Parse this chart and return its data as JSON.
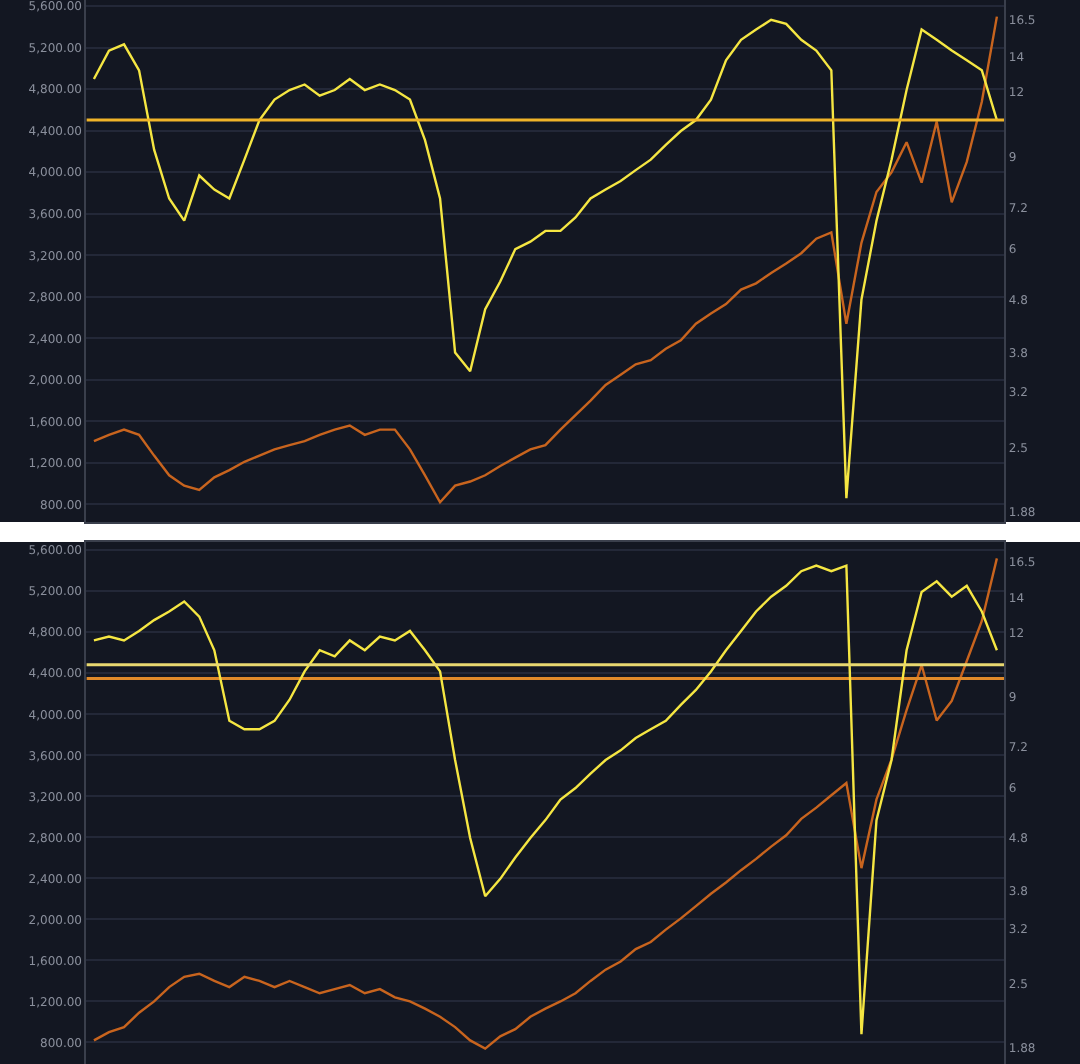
{
  "chart_data": [
    {
      "type": "line",
      "categories": [
        null,
        null,
        null,
        null,
        null,
        null,
        null,
        null,
        null,
        null,
        null,
        null,
        null,
        null,
        null,
        null,
        null,
        null,
        null,
        null,
        null,
        null,
        null,
        null,
        null,
        null,
        null,
        null,
        null,
        null,
        null,
        null,
        null,
        null,
        null,
        null,
        null,
        null,
        null,
        null,
        null,
        null,
        null,
        null,
        null,
        null,
        null,
        null,
        null,
        null,
        null,
        null,
        null,
        null,
        null,
        null,
        null,
        null,
        null,
        null,
        null
      ],
      "series": [
        {
          "color": "#c8641e",
          "values": [
            1410,
            1470,
            1520,
            1470,
            1270,
            1080,
            980,
            940,
            1060,
            1130,
            1210,
            1270,
            1330,
            1370,
            1410,
            1470,
            1520,
            1560,
            1470,
            1520,
            1520,
            1330,
            1080,
            820,
            980,
            1020,
            1080,
            1170,
            1250,
            1330,
            1370,
            1520,
            1660,
            1800,
            1950,
            2050,
            2150,
            2190,
            2300,
            2380,
            2540,
            2640,
            2730,
            2870,
            2930,
            3030,
            3120,
            3220,
            3360,
            3420,
            2540,
            3320,
            3810,
            4000,
            4290,
            3900,
            4490,
            3710,
            4100,
            4680,
            5500
          ]
        },
        {
          "color": "#f5e642",
          "axis": "y2",
          "values": [
            12.7,
            14.4,
            14.8,
            13.2,
            9.3,
            7.5,
            6.8,
            8.3,
            7.8,
            7.5,
            8.9,
            10.6,
            11.6,
            12.1,
            12.4,
            11.8,
            12.1,
            12.7,
            12.1,
            12.4,
            12.1,
            11.6,
            9.7,
            7.5,
            3.8,
            3.5,
            4.6,
            5.2,
            6.0,
            6.2,
            6.5,
            6.5,
            6.9,
            7.5,
            7.8,
            8.1,
            8.5,
            8.9,
            9.5,
            10.1,
            10.6,
            11.6,
            13.8,
            15.1,
            15.8,
            16.5,
            16.2,
            15.1,
            14.4,
            13.2,
            2.0,
            4.8,
            6.8,
            8.9,
            12.1,
            15.8,
            15.1,
            14.4,
            13.8,
            13.2,
            10.6
          ]
        }
      ],
      "ylim": [
        630,
        5660
      ],
      "yticks": [
        {
          "value": 800,
          "label": "800.00"
        },
        {
          "value": 1200,
          "label": "1,200.00"
        },
        {
          "value": 1600,
          "label": "1,600.00"
        },
        {
          "value": 2000,
          "label": "2,000.00"
        },
        {
          "value": 2400,
          "label": "2,400.00"
        },
        {
          "value": 2800,
          "label": "2,800.00"
        },
        {
          "value": 3200,
          "label": "3,200.00"
        },
        {
          "value": 3600,
          "label": "3,600.00"
        },
        {
          "value": 4000,
          "label": "4,000.00"
        },
        {
          "value": 4400,
          "label": "4,400.00"
        },
        {
          "value": 4800,
          "label": "4,800.00"
        },
        {
          "value": 5200,
          "label": "5,200.00"
        },
        {
          "value": 5600,
          "label": "5,600.00"
        }
      ],
      "y2lim": [
        1.8,
        18
      ],
      "y2ticks": [
        1.88,
        2.5,
        3.2,
        3.8,
        4.8,
        6,
        7.2,
        9,
        12,
        14,
        16.5
      ],
      "log": "y2",
      "grid": true,
      "ref_lines": [
        {
          "axis": "y2",
          "value": 10.6,
          "color": "#f0b429"
        }
      ]
    },
    {
      "type": "line",
      "categories": [
        null,
        null,
        null,
        null,
        null,
        null,
        null,
        null,
        null,
        null,
        null,
        null,
        null,
        null,
        null,
        null,
        null,
        null,
        null,
        null,
        null,
        null,
        null,
        null,
        null,
        null,
        null,
        null,
        null,
        null,
        null,
        null,
        null,
        null,
        null,
        null,
        null,
        null,
        null,
        null,
        null,
        null,
        null,
        null,
        null,
        null,
        null,
        null,
        null,
        null,
        null,
        null,
        null,
        null,
        null,
        null,
        null,
        null,
        null,
        null,
        null
      ],
      "series": [
        {
          "color": "#c8641e",
          "values": [
            820,
            900,
            950,
            1090,
            1200,
            1340,
            1440,
            1470,
            1400,
            1340,
            1440,
            1400,
            1340,
            1400,
            1340,
            1280,
            1320,
            1360,
            1280,
            1320,
            1240,
            1200,
            1130,
            1050,
            950,
            820,
            740,
            860,
            930,
            1050,
            1130,
            1200,
            1280,
            1400,
            1510,
            1590,
            1710,
            1780,
            1900,
            2010,
            2130,
            2250,
            2360,
            2480,
            2590,
            2710,
            2820,
            2980,
            3090,
            3210,
            3330,
            2500,
            3170,
            3560,
            4040,
            4480,
            3940,
            4130,
            4520,
            4910,
            5520
          ]
        },
        {
          "color": "#f5e642",
          "axis": "y2",
          "values": [
            11.6,
            11.8,
            11.6,
            12.1,
            12.7,
            13.2,
            13.8,
            12.9,
            11.1,
            8.1,
            7.8,
            7.8,
            8.1,
            8.9,
            10.1,
            11.1,
            10.8,
            11.6,
            11.1,
            11.8,
            11.6,
            12.1,
            11.1,
            10.1,
            6.8,
            4.8,
            3.7,
            4.0,
            4.4,
            4.8,
            5.2,
            5.7,
            6.0,
            6.4,
            6.8,
            7.1,
            7.5,
            7.8,
            8.1,
            8.7,
            9.3,
            10.1,
            11.1,
            12.1,
            13.2,
            14.1,
            14.8,
            15.8,
            16.2,
            15.8,
            16.2,
            2.0,
            5.2,
            6.8,
            11.1,
            14.4,
            15.1,
            14.1,
            14.8,
            13.2,
            11.1
          ]
        }
      ],
      "ylim": [
        590,
        5680
      ],
      "yticks": [
        {
          "value": 800,
          "label": "800.00"
        },
        {
          "value": 1200,
          "label": "1,200.00"
        },
        {
          "value": 1600,
          "label": "1,600.00"
        },
        {
          "value": 2000,
          "label": "2,000.00"
        },
        {
          "value": 2400,
          "label": "2,400.00"
        },
        {
          "value": 2800,
          "label": "2,800.00"
        },
        {
          "value": 3200,
          "label": "3,200.00"
        },
        {
          "value": 3600,
          "label": "3,600.00"
        },
        {
          "value": 4000,
          "label": "4,000.00"
        },
        {
          "value": 4400,
          "label": "4,400.00"
        },
        {
          "value": 4800,
          "label": "4,800.00"
        },
        {
          "value": 5200,
          "label": "5,200.00"
        },
        {
          "value": 5600,
          "label": "5,600.00"
        }
      ],
      "y2lim": [
        1.75,
        18
      ],
      "y2ticks": [
        1.88,
        2.5,
        3.2,
        3.8,
        4.8,
        6,
        7.2,
        9,
        12,
        14,
        16.5
      ],
      "log": "y2",
      "grid": true,
      "ref_lines": [
        {
          "axis": "y",
          "value": 4350,
          "color": "#e08a2a"
        },
        {
          "axis": "y2",
          "value": 10.4,
          "color": "#e8d870"
        }
      ]
    }
  ]
}
